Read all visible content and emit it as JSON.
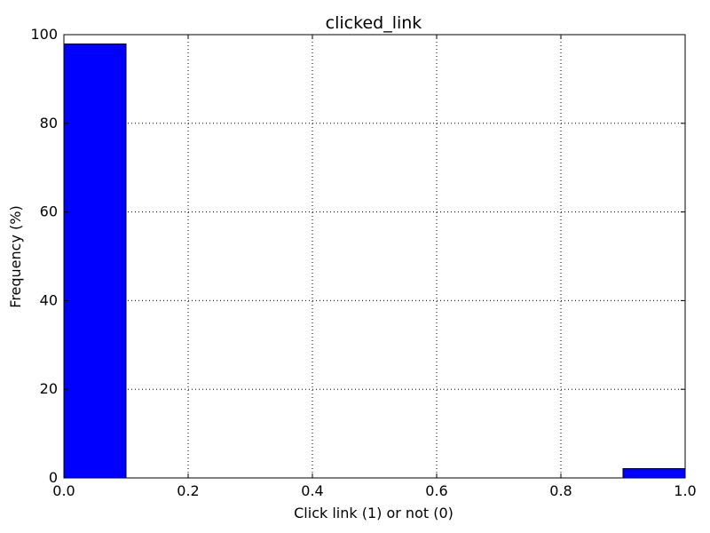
{
  "chart_data": {
    "type": "bar",
    "title": "clicked_link",
    "xlabel": "Click link (1) or not (0)",
    "ylabel": "Frequency (%)",
    "xlim": [
      0.0,
      1.0
    ],
    "ylim": [
      0,
      100
    ],
    "x_ticks": [
      "0.0",
      "0.2",
      "0.4",
      "0.6",
      "0.8",
      "1.0"
    ],
    "y_ticks": [
      "0",
      "20",
      "40",
      "60",
      "80",
      "100"
    ],
    "grid": true,
    "bar_color": "#0000ff",
    "bins": [
      {
        "x0": 0.0,
        "x1": 0.1,
        "value": 97.9
      },
      {
        "x0": 0.1,
        "x1": 0.2,
        "value": 0
      },
      {
        "x0": 0.2,
        "x1": 0.3,
        "value": 0
      },
      {
        "x0": 0.3,
        "x1": 0.4,
        "value": 0
      },
      {
        "x0": 0.4,
        "x1": 0.5,
        "value": 0
      },
      {
        "x0": 0.5,
        "x1": 0.6,
        "value": 0
      },
      {
        "x0": 0.6,
        "x1": 0.7,
        "value": 0
      },
      {
        "x0": 0.7,
        "x1": 0.8,
        "value": 0
      },
      {
        "x0": 0.8,
        "x1": 0.9,
        "value": 0
      },
      {
        "x0": 0.9,
        "x1": 1.0,
        "value": 2.1
      }
    ]
  }
}
